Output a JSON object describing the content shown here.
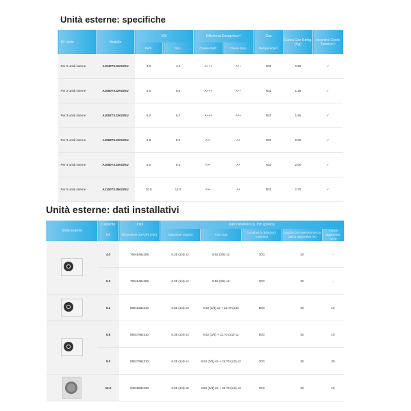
{
  "specs": {
    "title": "Unità esterne: specifiche",
    "headers": {
      "unit": "N° Unità",
      "model": "Modello",
      "kw": "kW",
      "kw_cool": "Raffr.",
      "kw_heat": "Risc.",
      "eff": "Efficienza Energetica⁽¹⁾",
      "eff_cool": "Classe Raffr.",
      "eff_heat": "Classe Risc.",
      "gas": "Gas",
      "gas_sub": "Refrigerante⁽²⁾",
      "charge": "Carica Gas Refrig. (Kg)",
      "incent": "Incentivi/ Conto Termico⁽³⁾"
    },
    "rows": [
      {
        "unit": "Per 2 unità interne",
        "model": "AJ040TXJ2KG/EU",
        "cool": "4.0",
        "heat": "4.2",
        "cls_c": "A+++",
        "cls_h": "A++",
        "gas": "R32",
        "charge": "0.90",
        "inc": "✓"
      },
      {
        "unit": "Per 2 unità interne",
        "model": "AJ050TXJ2KG/EU",
        "cool": "5.0",
        "heat": "5.6",
        "cls_c": "A+++",
        "cls_h": "A++",
        "gas": "R32",
        "charge": "1.18",
        "inc": "✓"
      },
      {
        "unit": "Per 3 unità interne",
        "model": "AJ052TXJ3KG/EU",
        "cool": "5.2",
        "heat": "6.3",
        "cls_c": "A+++",
        "cls_h": "A++",
        "gas": "R32",
        "charge": "1.55",
        "inc": "✓"
      },
      {
        "unit": "Per 3 unità interne",
        "model": "AJ068TXJ3KG/EU",
        "cool": "6.8",
        "heat": "8.0",
        "cls_c": "A++",
        "cls_h": "A+",
        "gas": "R32",
        "charge": "2.00",
        "inc": "✓"
      },
      {
        "unit": "Per 4 unità interne",
        "model": "AJ080TXJ4KG/EU",
        "cool": "8.0",
        "heat": "9.3",
        "cls_c": "A++",
        "cls_h": "A+",
        "gas": "R32",
        "charge": "2.00",
        "inc": "✓"
      },
      {
        "unit": "Per 5 unità interne",
        "model": "AJ100TXJ5KG/EU",
        "cool": "10.0",
        "heat": "12.0",
        "cls_c": "A++",
        "cls_h": "A+",
        "gas": "R32",
        "charge": "2.70",
        "inc": "✓"
      }
    ]
  },
  "install": {
    "title": "Unità esterne: dati installativi",
    "headers": {
      "unit": "Unità Esterne",
      "cap": "Capacità",
      "cap_sub": "kW",
      "dims": "Unità",
      "dims_sub": "Dimensioni (LxAxP) (mm)",
      "data": "Dati installativi (ø, mm (pollici))",
      "liquid": "Tubazione Liquido",
      "gas": "Tubo Gas",
      "len": "Lunghezza tubazioni massima",
      "len_max": "Lunghezza massima senza carica aggiuntiva (m)",
      "extra": "Carica aggiuntiva (g/m)"
    },
    "rows": [
      {
        "cap": "4.0",
        "dims": "790x548x285",
        "liq": "6.35 (1/4) x2",
        "gas": "9.52 (3/8) x2",
        "len": "30/3",
        "lmax": "30",
        "extra": "-"
      },
      {
        "cap": "5.0",
        "dims": "790x548x285",
        "liq": "6.35 (1/4) x2",
        "gas": "9.52 (3/8) x2",
        "len": "30/3",
        "lmax": "30",
        "extra": "-"
      },
      {
        "cap": "5.2",
        "dims": "880x638x310",
        "liq": "6.35 (1/4) x3",
        "gas": "9.52 (3/8) x2 + 12.70 (1/2)",
        "len": "50/3",
        "lmax": "30",
        "extra": "10"
      },
      {
        "cap": "6.8",
        "dims": "880x798x310",
        "liq": "6.35 (1/4) x3",
        "gas": "9.52 (3/8) + 12.70 (1/2) x2",
        "len": "50/3",
        "lmax": "30",
        "extra": "10"
      },
      {
        "cap": "8.0",
        "dims": "880x798x310",
        "liq": "6.35 (1/4) x4",
        "gas": "9.52 (3/8) x2 + 12.70 (1/2) x2",
        "len": "70/3",
        "lmax": "30",
        "extra": "20"
      },
      {
        "cap": "10.0",
        "dims": "940x998x330",
        "liq": "6.35 (1/4) x5",
        "gas": "9.52 (3/8) x2 + 12.70 (1/2) x3",
        "len": "75/3",
        "lmax": "30",
        "extra": "10"
      }
    ]
  }
}
